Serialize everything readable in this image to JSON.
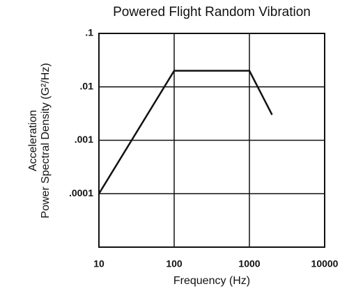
{
  "chart_data": {
    "type": "line",
    "title": "Powered Flight Random Vibration",
    "x_label": "Frequency (Hz)",
    "y_label": [
      "Acceleration",
      "Power Spectral Density (G²/Hz)"
    ],
    "x": [
      10,
      100,
      1000,
      2000
    ],
    "series": [
      {
        "color": "#111111",
        "values": [
          0.0001,
          0.02,
          0.02,
          0.003
        ]
      }
    ],
    "xlim": [
      10,
      10000
    ],
    "xticks": [
      10,
      100,
      1000,
      10000
    ],
    "ylim": [
      1e-05,
      0.1
    ],
    "yticks": [
      {
        "value": 0.1,
        "label": ".1"
      },
      {
        "value": 0.01,
        "label": ".01"
      },
      {
        "value": 0.001,
        "label": ".001"
      },
      {
        "value": 0.0001,
        "label": ".0001"
      }
    ],
    "xscale": "log",
    "yscale": "log",
    "grid": true
  }
}
